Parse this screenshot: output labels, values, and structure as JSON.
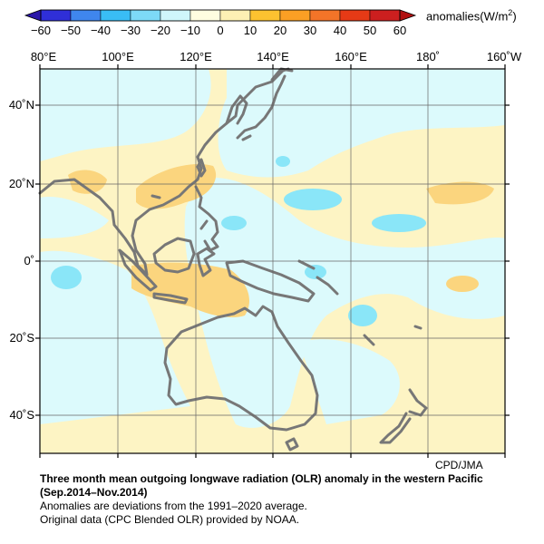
{
  "colorbar": {
    "unit_prefix": "anomalies(W/m",
    "unit_exp": "2",
    "unit_suffix": ")",
    "ticks": [
      "−60",
      "−50",
      "−40",
      "−30",
      "−20",
      "−10",
      "0",
      "10",
      "20",
      "30",
      "40",
      "50",
      "60"
    ],
    "colors": [
      "#2f2fd8",
      "#3f86ee",
      "#39bdf5",
      "#7ddaf7",
      "#cff6fb",
      "#fffde0",
      "#fdf0b4",
      "#fcc230",
      "#fb9f24",
      "#f37428",
      "#e63a16",
      "#cc1f1f"
    ]
  },
  "map": {
    "lon_labels": [
      "80°E",
      "100°E",
      "120°E",
      "140°E",
      "160°E",
      "180˚",
      "160˚W"
    ],
    "lat_labels": [
      "40˚N",
      "20˚N",
      "0˚",
      "20˚S",
      "40˚S"
    ],
    "credit": "CPD/JMA",
    "colors": {
      "land": "#777777",
      "neg_light": "#dcfafc",
      "pos_light": "#fdf4c4",
      "pos_mid": "#fbd57e",
      "neg_mid": "#8ae6f8"
    }
  },
  "caption": {
    "title_line1": "Three month mean outgoing longwave radiation (OLR) anomaly in the western Pacific",
    "title_line2": "(Sep.2014–Nov.2014)",
    "line3": "Anomalies are deviations from the 1991–2020 average.",
    "line4": "Original data (CPC Blended OLR) provided by NOAA."
  }
}
